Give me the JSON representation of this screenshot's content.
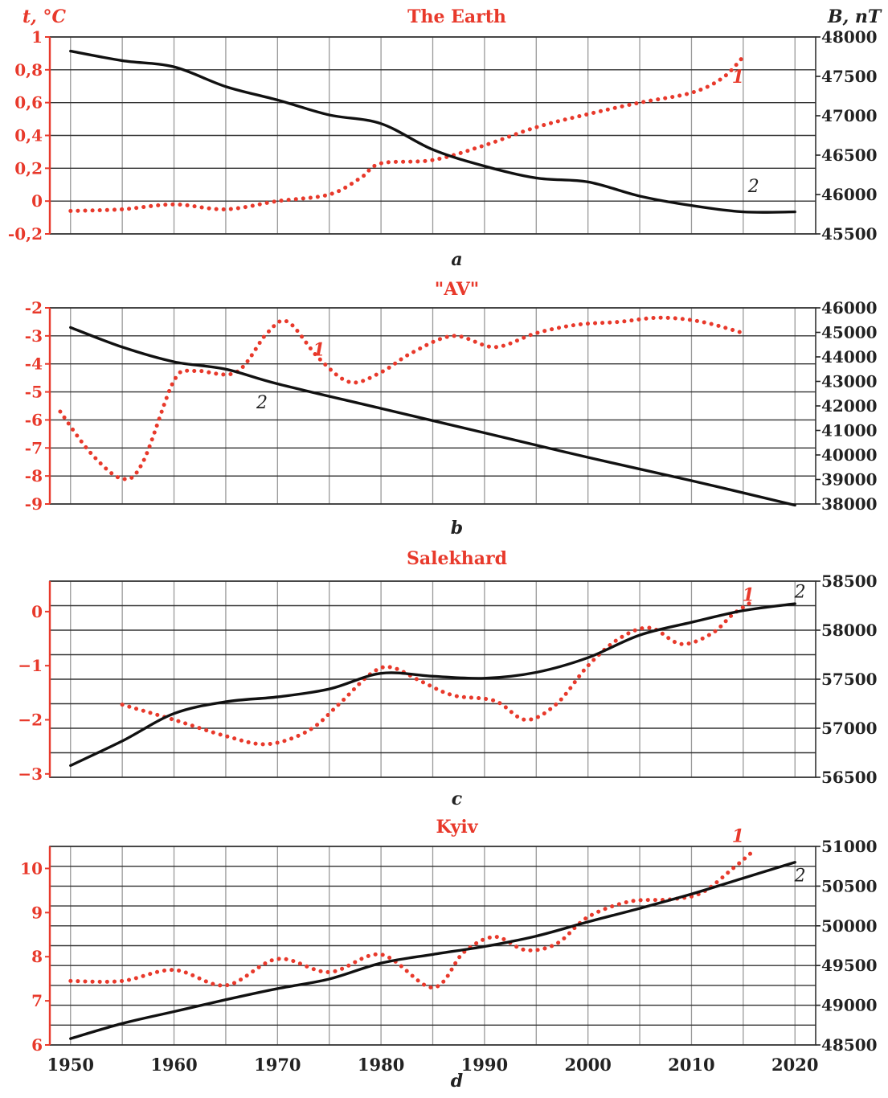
{
  "axis_labels": {
    "t_label": "t, °C",
    "b_label": "B, nT"
  },
  "x_tick_labels": [
    "1950",
    "1960",
    "1970",
    "1980",
    "1990",
    "2000",
    "2010",
    "2020"
  ],
  "colors": {
    "temperature": "#e8392b",
    "magnetic": "#111111",
    "grid": "#9a9a9a",
    "frame": "#333333",
    "axis_red": "#e8392b"
  },
  "chart_data": [
    {
      "type": "line",
      "title": "The Earth",
      "caption": "a",
      "xlim": [
        1948,
        2022
      ],
      "ylim_left": [
        -0.2,
        1
      ],
      "ylim_right": [
        45500,
        48000
      ],
      "left_ticks": [
        1,
        0.8,
        0.6,
        0.4,
        0.2,
        0,
        -0.2
      ],
      "left_tick_labels": [
        "1",
        "0,8",
        "0,6",
        "0,4",
        "0,2",
        "0",
        "-0,2"
      ],
      "right_ticks": [
        48000,
        47500,
        47000,
        46500,
        46000,
        45500
      ],
      "right_tick_labels": [
        "48000",
        "47500",
        "47000",
        "46500",
        "46000",
        "45500"
      ],
      "grid_lines_left": [
        1,
        0.8,
        0.6,
        0.4,
        0.2,
        0,
        -0.2
      ],
      "series": [
        {
          "name": "1",
          "axis": "left",
          "style": "dotted",
          "label_pos": [
            2014.5,
            0.72
          ],
          "points": [
            [
              1950,
              -0.06
            ],
            [
              1955,
              -0.05
            ],
            [
              1960,
              -0.02
            ],
            [
              1965,
              -0.05
            ],
            [
              1970,
              0.0
            ],
            [
              1975,
              0.04
            ],
            [
              1978,
              0.14
            ],
            [
              1980,
              0.23
            ],
            [
              1985,
              0.25
            ],
            [
              1990,
              0.34
            ],
            [
              1995,
              0.45
            ],
            [
              2000,
              0.53
            ],
            [
              2005,
              0.6
            ],
            [
              2010,
              0.66
            ],
            [
              2013,
              0.75
            ],
            [
              2015,
              0.88
            ]
          ]
        },
        {
          "name": "2",
          "axis": "right",
          "style": "solid",
          "label_pos": [
            2016,
            46030
          ],
          "points": [
            [
              1950,
              47820
            ],
            [
              1955,
              47700
            ],
            [
              1960,
              47620
            ],
            [
              1965,
              47370
            ],
            [
              1970,
              47200
            ],
            [
              1975,
              47010
            ],
            [
              1980,
              46900
            ],
            [
              1985,
              46570
            ],
            [
              1990,
              46360
            ],
            [
              1995,
              46210
            ],
            [
              2000,
              46160
            ],
            [
              2005,
              45980
            ],
            [
              2010,
              45860
            ],
            [
              2015,
              45780
            ],
            [
              2020,
              45780
            ]
          ]
        }
      ]
    },
    {
      "type": "line",
      "title": "\"AV\"",
      "caption": "b",
      "xlim": [
        1948,
        2022
      ],
      "ylim_left": [
        -9,
        -2
      ],
      "ylim_right": [
        38000,
        46000
      ],
      "left_ticks": [
        -2,
        -3,
        -4,
        -5,
        -6,
        -7,
        -8,
        -9
      ],
      "left_tick_labels": [
        "-2",
        "-3",
        "-4",
        "-5",
        "-6",
        "-7",
        "-8",
        "-9"
      ],
      "right_ticks": [
        46000,
        45000,
        44000,
        43000,
        42000,
        41000,
        40000,
        39000,
        38000
      ],
      "right_tick_labels": [
        "46000",
        "45000",
        "44000",
        "43000",
        "42000",
        "41000",
        "40000",
        "39000",
        "38000"
      ],
      "grid_lines_left": [
        -2,
        -3,
        -4,
        -5,
        -6,
        -7,
        -8,
        -9
      ],
      "series": [
        {
          "name": "1",
          "axis": "left",
          "style": "dotted",
          "label_pos": [
            1974,
            -3.7
          ],
          "points": [
            [
              1949,
              -5.7
            ],
            [
              1952,
              -7.2
            ],
            [
              1955,
              -8.1
            ],
            [
              1957,
              -7.5
            ],
            [
              1960,
              -4.6
            ],
            [
              1962,
              -4.25
            ],
            [
              1966,
              -4.3
            ],
            [
              1969,
              -2.9
            ],
            [
              1971,
              -2.5
            ],
            [
              1974,
              -3.8
            ],
            [
              1977,
              -4.65
            ],
            [
              1980,
              -4.3
            ],
            [
              1983,
              -3.6
            ],
            [
              1987,
              -3.0
            ],
            [
              1991,
              -3.4
            ],
            [
              1995,
              -2.9
            ],
            [
              1999,
              -2.6
            ],
            [
              2003,
              -2.5
            ],
            [
              2007,
              -2.35
            ],
            [
              2011,
              -2.5
            ],
            [
              2015,
              -2.9
            ]
          ]
        },
        {
          "name": "2",
          "axis": "right",
          "style": "solid",
          "label_pos": [
            1968.5,
            41900
          ],
          "points": [
            [
              1950,
              45200
            ],
            [
              1955,
              44400
            ],
            [
              1960,
              43800
            ],
            [
              1965,
              43500
            ],
            [
              1970,
              42900
            ],
            [
              1980,
              41900
            ],
            [
              1990,
              40900
            ],
            [
              2000,
              39900
            ],
            [
              2010,
              38950
            ],
            [
              2020,
              37950
            ]
          ]
        }
      ]
    },
    {
      "type": "line",
      "title": "Salekhard",
      "caption": "c",
      "xlim": [
        1948,
        2022
      ],
      "ylim_left": [
        -3.0625,
        0.5625
      ],
      "ylim_right": [
        56500,
        58500
      ],
      "left_ticks": [
        0,
        -1,
        -2,
        -3
      ],
      "left_tick_labels": [
        "0",
        "−1",
        "−2",
        "−3"
      ],
      "right_ticks": [
        58500,
        58000,
        57500,
        57000,
        56500
      ],
      "right_tick_labels": [
        "58500",
        "58000",
        "57500",
        "57000",
        "56500"
      ],
      "grid_lines_right": [
        58500,
        58250,
        58000,
        57750,
        57500,
        57250,
        57000,
        56750,
        56500
      ],
      "series": [
        {
          "name": "1",
          "axis": "left",
          "style": "dotted",
          "label_pos": [
            2015.5,
            0.2
          ],
          "points": [
            [
              1955,
              -1.72
            ],
            [
              1960,
              -2.0
            ],
            [
              1965,
              -2.3
            ],
            [
              1969,
              -2.45
            ],
            [
              1973,
              -2.2
            ],
            [
              1976,
              -1.7
            ],
            [
              1979,
              -1.15
            ],
            [
              1981,
              -1.03
            ],
            [
              1984,
              -1.3
            ],
            [
              1987,
              -1.55
            ],
            [
              1991,
              -1.65
            ],
            [
              1994,
              -2.0
            ],
            [
              1997,
              -1.7
            ],
            [
              2000,
              -1.0
            ],
            [
              2003,
              -0.5
            ],
            [
              2006,
              -0.3
            ],
            [
              2009,
              -0.6
            ],
            [
              2012,
              -0.4
            ],
            [
              2014,
              -0.05
            ],
            [
              2016,
              0.2
            ]
          ]
        },
        {
          "name": "2",
          "axis": "right",
          "style": "solid",
          "label_pos": [
            2020.5,
            58330
          ],
          "points": [
            [
              1950,
              56620
            ],
            [
              1955,
              56870
            ],
            [
              1960,
              57150
            ],
            [
              1965,
              57270
            ],
            [
              1970,
              57320
            ],
            [
              1975,
              57400
            ],
            [
              1980,
              57560
            ],
            [
              1985,
              57530
            ],
            [
              1990,
              57510
            ],
            [
              1995,
              57570
            ],
            [
              2000,
              57720
            ],
            [
              2005,
              57950
            ],
            [
              2010,
              58080
            ],
            [
              2015,
              58200
            ],
            [
              2020,
              58270
            ]
          ]
        }
      ]
    },
    {
      "type": "line",
      "title": "Kyiv",
      "caption": "d",
      "xlim": [
        1948,
        2022
      ],
      "ylim_left": [
        6,
        10.5
      ],
      "ylim_right": [
        48500,
        51000
      ],
      "left_ticks": [
        10,
        9,
        8,
        7,
        6
      ],
      "left_tick_labels": [
        "10",
        "9",
        "8",
        "7",
        "6"
      ],
      "right_ticks": [
        51000,
        50500,
        50000,
        49500,
        49000,
        48500
      ],
      "right_tick_labels": [
        "51000",
        "50500",
        "50000",
        "49500",
        "49000",
        "48500"
      ],
      "grid_lines_right": [
        51000,
        50750,
        50500,
        50250,
        50000,
        49750,
        49500,
        49250,
        49000,
        48750,
        48500
      ],
      "series": [
        {
          "name": "1",
          "axis": "left",
          "style": "dotted",
          "label_pos": [
            2014.5,
            10.6
          ],
          "points": [
            [
              1950,
              7.45
            ],
            [
              1955,
              7.45
            ],
            [
              1960,
              7.7
            ],
            [
              1965,
              7.35
            ],
            [
              1970,
              7.95
            ],
            [
              1975,
              7.65
            ],
            [
              1980,
              8.05
            ],
            [
              1985,
              7.3
            ],
            [
              1988,
              8.1
            ],
            [
              1991,
              8.45
            ],
            [
              1994,
              8.15
            ],
            [
              1997,
              8.3
            ],
            [
              2000,
              8.9
            ],
            [
              2004,
              9.25
            ],
            [
              2008,
              9.3
            ],
            [
              2011,
              9.45
            ],
            [
              2014,
              10.0
            ],
            [
              2016,
              10.4
            ]
          ]
        },
        {
          "name": "2",
          "axis": "right",
          "style": "solid",
          "label_pos": [
            2020.5,
            50560
          ],
          "points": [
            [
              1950,
              48580
            ],
            [
              1955,
              48770
            ],
            [
              1960,
              48920
            ],
            [
              1965,
              49070
            ],
            [
              1970,
              49210
            ],
            [
              1975,
              49330
            ],
            [
              1980,
              49530
            ],
            [
              1985,
              49640
            ],
            [
              1990,
              49740
            ],
            [
              1995,
              49870
            ],
            [
              2000,
              50050
            ],
            [
              2005,
              50220
            ],
            [
              2010,
              50400
            ],
            [
              2015,
              50600
            ],
            [
              2020,
              50800
            ]
          ]
        }
      ]
    }
  ]
}
